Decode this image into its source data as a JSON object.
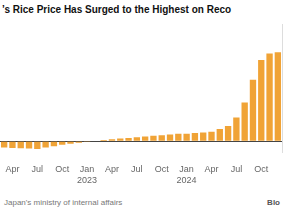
{
  "chart_data": {
    "type": "bar",
    "title": "’s Rice Price Has Surged to the Highest on Reco",
    "source": "Japan's ministry of internal affairs",
    "credit": "Blo",
    "categories": [
      null,
      "Apr",
      null,
      null,
      "Jul",
      null,
      null,
      "Oct",
      null,
      null,
      "Jan 2023",
      null,
      null,
      "Apr",
      null,
      null,
      "Jul",
      null,
      null,
      "Oct",
      null,
      null,
      "Jan 2024",
      null,
      null,
      "Apr",
      null,
      null,
      "Jul",
      null,
      null,
      "Oct",
      null,
      null
    ],
    "values": [
      -4.5,
      -4.8,
      -5.0,
      -5.2,
      -5.5,
      -4.5,
      -3.5,
      -2.5,
      -1.8,
      -1.0,
      -0.5,
      0.5,
      1.0,
      1.5,
      2.0,
      2.5,
      3.0,
      3.5,
      4.0,
      4.5,
      5.0,
      5.5,
      5.5,
      6.0,
      6.5,
      7.0,
      9.0,
      11.1,
      17.2,
      28.2,
      44.7,
      58.9,
      63.6,
      64.5
    ],
    "color": "#f0a336",
    "ylim": [
      -8,
      85
    ],
    "yticks": [
      0
    ],
    "grid": true,
    "tick_labels": "x"
  }
}
